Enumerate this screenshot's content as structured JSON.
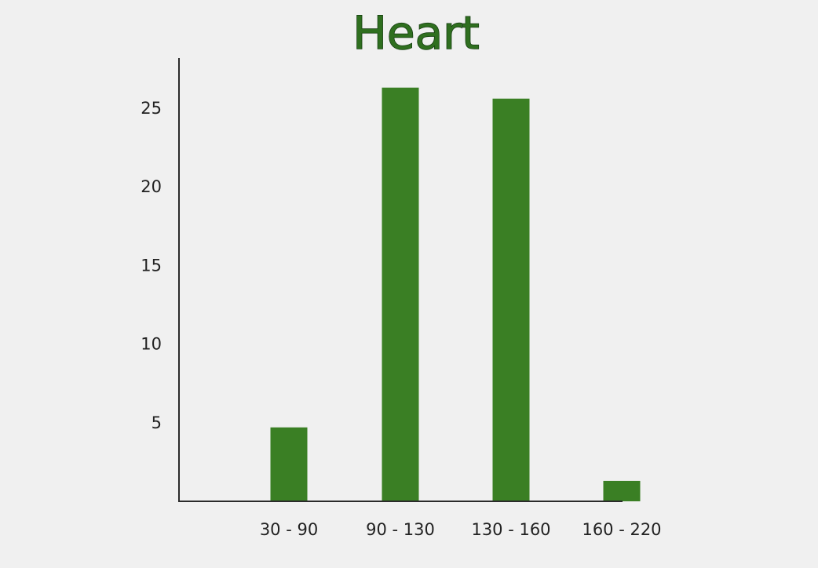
{
  "chart_data": {
    "type": "bar",
    "title": "Heart",
    "categories": [
      "30 - 90",
      "90 - 130",
      "130 - 160",
      "160 - 220"
    ],
    "values": [
      4.7,
      26.3,
      25.6,
      1.3
    ],
    "yticks": [
      "5",
      "10",
      "15",
      "20",
      "25"
    ],
    "ylim": [
      0,
      28
    ],
    "xlabel": "",
    "ylabel": "",
    "grid": false,
    "bar_color": "#3a7f24"
  }
}
